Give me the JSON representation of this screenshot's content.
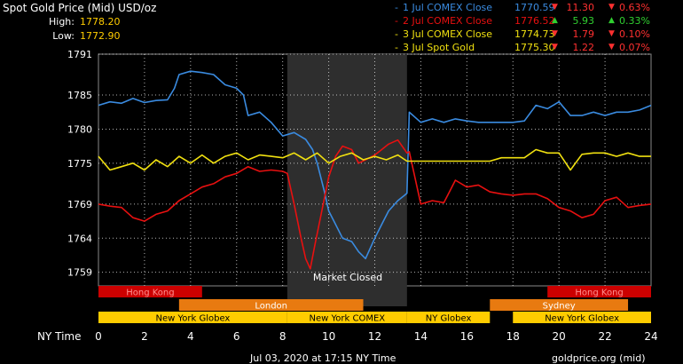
{
  "header": {
    "title": "Spot Gold Price (Mid) USD/oz",
    "high_label": "High:",
    "high_value": "1778.20",
    "low_label": "Low:",
    "low_value": "1772.90"
  },
  "legend": [
    {
      "label": "1 Jul COMEX Close",
      "price": "1770.59",
      "change": "11.30",
      "pct": "0.63%",
      "dir": "down",
      "color": "#3a8be0",
      "chg_color": "#ff3030"
    },
    {
      "label": "2 Jul COMEX Close",
      "price": "1776.52",
      "change": "5.93",
      "pct": "0.33%",
      "dir": "up",
      "color": "#e81010",
      "chg_color": "#30d030"
    },
    {
      "label": "3 Jul COMEX Close",
      "price": "1774.73",
      "change": "1.79",
      "pct": "0.10%",
      "dir": "down",
      "color": "#f0e010",
      "chg_color": "#ff3030"
    },
    {
      "label": "3 Jul Spot Gold",
      "price": "1775.30",
      "change": "1.22",
      "pct": "0.07%",
      "dir": "down",
      "color": "#f0e010",
      "chg_color": "#ff3030"
    }
  ],
  "markers": {
    "legend_dash": "-",
    "up_arrow": "▲",
    "down_arrow": "▼"
  },
  "footer": {
    "left": "Jul 03, 2020 at 17:15 NY Time",
    "right": "goldprice.org (mid)"
  },
  "colors": {
    "blue": "#3a8be0",
    "red": "#e81010",
    "yellow": "#f0e010",
    "shade": "#2e2e2e",
    "grid": "#ffffff",
    "hk_bar": "#cc0000",
    "london_bar": "#e87a10",
    "ny_bar": "#ffcc00"
  },
  "chart_data": {
    "type": "line",
    "xlabel": "NY Time",
    "xlim": [
      0,
      24
    ],
    "x_ticks": [
      0,
      2,
      4,
      6,
      8,
      10,
      12,
      14,
      16,
      18,
      20,
      22,
      24
    ],
    "ylim": [
      1757,
      1791
    ],
    "y_ticks": [
      1759,
      1764,
      1769,
      1775,
      1780,
      1785,
      1791
    ],
    "grid": true,
    "annotation": "Market Closed",
    "shaded_x": [
      8.2,
      13.4
    ],
    "sessions": [
      {
        "label": "Hong Kong",
        "start": 0,
        "end": 4.5,
        "row": 0,
        "color": "#cc0000",
        "text_color": "#ff9090"
      },
      {
        "label": "Hong Kong",
        "start": 19.5,
        "end": 24,
        "row": 0,
        "color": "#cc0000",
        "text_color": "#ff9090"
      },
      {
        "label": "London",
        "start": 3.5,
        "end": 11.5,
        "row": 1,
        "color": "#e87a10",
        "text_color": "#ffffff"
      },
      {
        "label": "Sydney",
        "start": 17,
        "end": 23,
        "row": 1,
        "color": "#e87a10",
        "text_color": "#ffffff"
      },
      {
        "label": "New York Globex",
        "start": 0,
        "end": 8.2,
        "row": 2,
        "color": "#ffcc00",
        "text_color": "#000000"
      },
      {
        "label": "New York COMEX",
        "start": 8.2,
        "end": 13.4,
        "row": 2,
        "color": "#ffcc00",
        "text_color": "#000000"
      },
      {
        "label": "NY Globex",
        "start": 13.4,
        "end": 17,
        "row": 2,
        "color": "#ffcc00",
        "text_color": "#000000"
      },
      {
        "label": "New York Globex",
        "start": 18,
        "end": 24,
        "row": 2,
        "color": "#ffcc00",
        "text_color": "#000000"
      }
    ],
    "series": [
      {
        "name": "1 Jul COMEX Close",
        "color": "#3a8be0",
        "x": [
          0,
          0.5,
          1,
          1.5,
          2,
          2.5,
          3,
          3.3,
          3.5,
          4,
          4.5,
          5,
          5.5,
          6,
          6.3,
          6.5,
          7,
          7.5,
          8,
          8.5,
          9,
          9.3,
          9.5,
          9.8,
          10,
          10.3,
          10.6,
          11,
          11.3,
          11.6,
          12,
          12.3,
          12.6,
          13,
          13.3,
          13.4,
          13.5,
          14,
          14.5,
          15,
          15.5,
          16,
          16.5,
          17,
          17.5,
          18,
          18.5,
          19,
          19.5,
          20,
          20.5,
          21,
          21.5,
          22,
          22.5,
          23,
          23.5,
          24
        ],
        "y": [
          1783.5,
          1784,
          1783.8,
          1784.5,
          1783.9,
          1784.2,
          1784.3,
          1786,
          1788,
          1788.5,
          1788.3,
          1788,
          1786.5,
          1786,
          1785,
          1782,
          1782.5,
          1781,
          1779,
          1779.5,
          1778.5,
          1777,
          1775,
          1771,
          1768,
          1766,
          1764,
          1763.5,
          1762,
          1761,
          1764,
          1766,
          1768,
          1769.5,
          1770.3,
          1770.6,
          1782.5,
          1781,
          1781.5,
          1781,
          1781.5,
          1781.2,
          1781,
          1781,
          1781,
          1781,
          1781.2,
          1783.5,
          1783,
          1784,
          1782,
          1782,
          1782.5,
          1782,
          1782.5,
          1782.5,
          1782.8,
          1783.5
        ]
      },
      {
        "name": "2 Jul COMEX Close",
        "color": "#e81010",
        "x": [
          0,
          0.5,
          1,
          1.5,
          2,
          2.5,
          3,
          3.5,
          4,
          4.5,
          5,
          5.5,
          6,
          6.5,
          7,
          7.5,
          8,
          8.2,
          8.5,
          8.8,
          9,
          9.2,
          9.4,
          9.7,
          10,
          10.3,
          10.6,
          11,
          11.3,
          11.6,
          12,
          12.3,
          12.6,
          13,
          13.4,
          13.5,
          14,
          14.5,
          15,
          15.5,
          16,
          16.5,
          17,
          17.5,
          18,
          18.5,
          19,
          19.5,
          20,
          20.5,
          21,
          21.5,
          22,
          22.5,
          23,
          23.5,
          24
        ],
        "y": [
          1769,
          1768.7,
          1768.5,
          1767,
          1766.5,
          1767.5,
          1768,
          1769.5,
          1770.5,
          1771.5,
          1772,
          1773,
          1773.5,
          1774.5,
          1773.8,
          1774,
          1773.8,
          1773.5,
          1769,
          1764,
          1761,
          1759.5,
          1763,
          1768,
          1773,
          1776,
          1777.5,
          1777,
          1775,
          1775.5,
          1776.2,
          1777,
          1777.8,
          1778.4,
          1776.5,
          1776.7,
          1769,
          1769.5,
          1769.2,
          1772.5,
          1771.5,
          1771.8,
          1770.8,
          1770.5,
          1770.3,
          1770.5,
          1770.5,
          1769.8,
          1768.5,
          1768,
          1767,
          1767.5,
          1769.5,
          1770,
          1768.5,
          1768.8,
          1769
        ]
      },
      {
        "name": "3 Jul COMEX Close",
        "color": "#f0e010",
        "x": [
          0,
          0.5,
          1,
          1.5,
          2,
          2.5,
          3,
          3.5,
          4,
          4.5,
          5,
          5.5,
          6,
          6.5,
          7,
          7.5,
          8,
          8.5,
          9,
          9.5,
          10,
          10.5,
          11,
          11.5,
          12,
          12.5,
          13,
          13.4,
          13.5,
          14,
          14.5,
          15,
          15.5,
          16,
          16.5,
          17,
          17.5,
          18,
          18.5,
          19,
          19.5,
          20,
          20.5,
          21,
          21.5,
          22,
          22.5,
          23,
          23.5,
          24
        ],
        "y": [
          1776,
          1774,
          1774.5,
          1775,
          1774,
          1775.5,
          1774.5,
          1776,
          1775,
          1776.2,
          1775,
          1776,
          1776.5,
          1775.5,
          1776.2,
          1776,
          1775.8,
          1776.5,
          1775.5,
          1776.5,
          1775,
          1776,
          1776.5,
          1775.5,
          1776,
          1775.5,
          1776.2,
          1775.3,
          1775.3,
          1775.3,
          1775.3,
          1775.3,
          1775.3,
          1775.3,
          1775.3,
          1775.3,
          1775.8,
          1775.8,
          1775.8,
          1777,
          1776.5,
          1776.5,
          1774,
          1776.3,
          1776.5,
          1776.5,
          1776,
          1776.5,
          1776,
          1776
        ]
      }
    ]
  }
}
